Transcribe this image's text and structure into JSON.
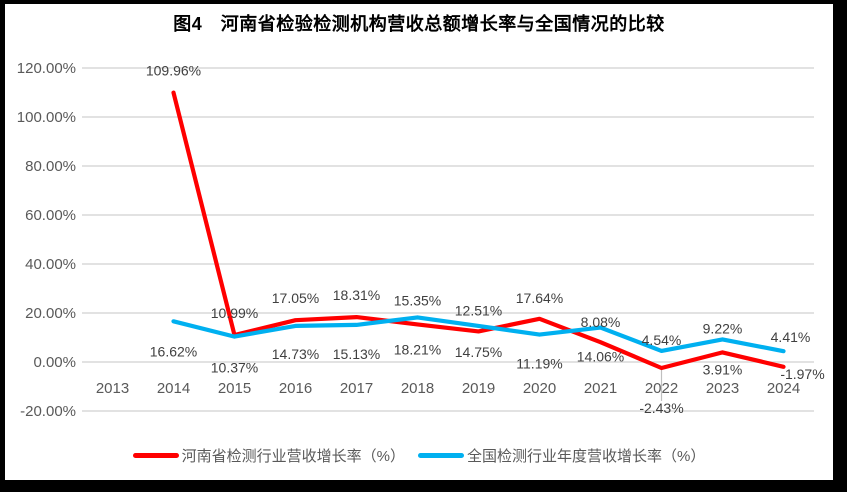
{
  "chart_data": {
    "type": "line",
    "title": "图4　河南省检验检测机构营收总额增长率与全国情况的比较",
    "categories": [
      "2013",
      "2014",
      "2015",
      "2016",
      "2017",
      "2018",
      "2019",
      "2020",
      "2021",
      "2022",
      "2023",
      "2024"
    ],
    "series": [
      {
        "id": "henan",
        "name": "河南省检测行业营收增长率（%）",
        "color": "#FF0000",
        "values": [
          null,
          109.96,
          10.99,
          17.05,
          18.31,
          15.35,
          12.51,
          17.64,
          8.08,
          -2.43,
          3.91,
          -1.97
        ],
        "labels": [
          null,
          "109.96%",
          "10.99%",
          "17.05%",
          "18.31%",
          "15.35%",
          "12.51%",
          "17.64%",
          "8.08%",
          "-2.43%",
          "3.91%",
          "-1.97%"
        ],
        "label_offsets": [
          null,
          [
            0,
            -22
          ],
          [
            0,
            -22
          ],
          [
            0,
            -22
          ],
          [
            0,
            -22
          ],
          [
            0,
            -24
          ],
          [
            0,
            -21
          ],
          [
            0,
            -21
          ],
          [
            0,
            -20
          ],
          [
            0,
            40
          ],
          [
            0,
            17
          ],
          [
            19,
            7
          ]
        ]
      },
      {
        "id": "national",
        "name": "全国检测行业年度营收增长率（%）",
        "color": "#00B0F0",
        "values": [
          null,
          16.62,
          10.37,
          14.73,
          15.13,
          18.21,
          14.75,
          11.19,
          14.06,
          4.54,
          9.22,
          4.41
        ],
        "labels": [
          null,
          "16.62%",
          "10.37%",
          "14.73%",
          "15.13%",
          "18.21%",
          "14.75%",
          "11.19%",
          "14.06%",
          "4.54%",
          "9.22%",
          "4.41%"
        ],
        "label_offsets": [
          null,
          [
            0,
            30
          ],
          [
            0,
            31
          ],
          [
            0,
            28
          ],
          [
            0,
            29
          ],
          [
            0,
            32
          ],
          [
            0,
            26
          ],
          [
            0,
            29
          ],
          [
            0,
            29
          ],
          [
            0,
            -11
          ],
          [
            0,
            -11
          ],
          [
            7,
            -14
          ]
        ]
      }
    ],
    "y_axis": {
      "ticks": [
        "120.00%",
        "100.00%",
        "80.00%",
        "60.00%",
        "40.00%",
        "20.00%",
        "0.00%",
        "-20.00%"
      ],
      "tick_values": [
        120,
        100,
        80,
        60,
        40,
        20,
        0,
        -20
      ],
      "min": -20,
      "max": 120
    },
    "grid": true,
    "legend_position": "bottom",
    "leader_line": {
      "series_index": 0,
      "point_index": 9
    },
    "colors": {
      "background": "#FFFFFF",
      "frame": "#000000",
      "gridline": "#D9D9D9",
      "axis_text": "#595959",
      "data_label_text": "#404040",
      "leader_line": "#BFBFBF"
    }
  }
}
